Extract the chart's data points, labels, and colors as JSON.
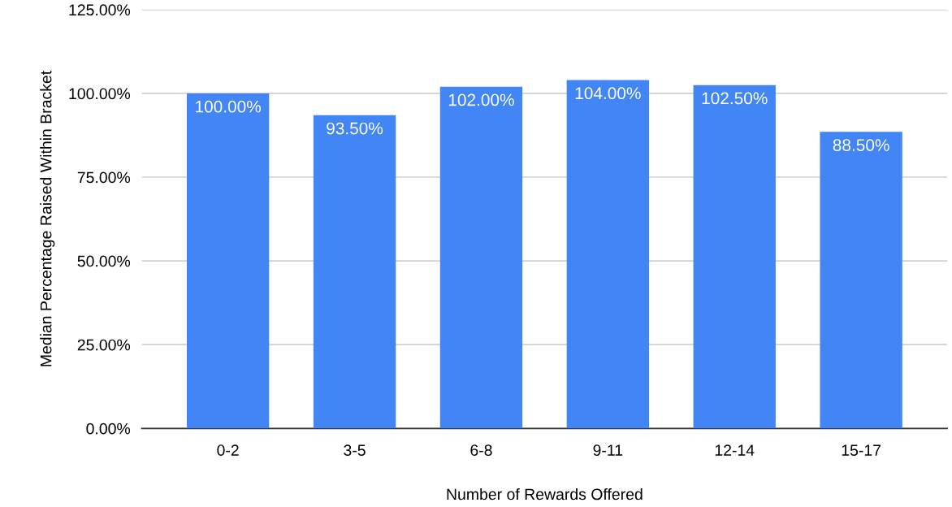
{
  "chart_data": {
    "type": "bar",
    "xlabel": "Number of Rewards Offered",
    "ylabel": "Median Percentage Raised Within Bracket",
    "categories": [
      "0-2",
      "3-5",
      "6-8",
      "9-11",
      "12-14",
      "15-17"
    ],
    "values": [
      100,
      93.5,
      102,
      104,
      102.5,
      88.5
    ],
    "value_labels": [
      "100.00%",
      "93.50%",
      "102.00%",
      "104.00%",
      "102.50%",
      "88.50%"
    ],
    "color": "#4285f4",
    "ylim": [
      0,
      125
    ],
    "yticks": [
      {
        "value": 0,
        "label": "0.00%"
      },
      {
        "value": 25,
        "label": "25.00%"
      },
      {
        "value": 50,
        "label": "50.00%"
      },
      {
        "value": 75,
        "label": "75.00%"
      },
      {
        "value": 100,
        "label": "100.00%"
      },
      {
        "value": 125,
        "label": "125.00%"
      }
    ],
    "grid": "y"
  }
}
